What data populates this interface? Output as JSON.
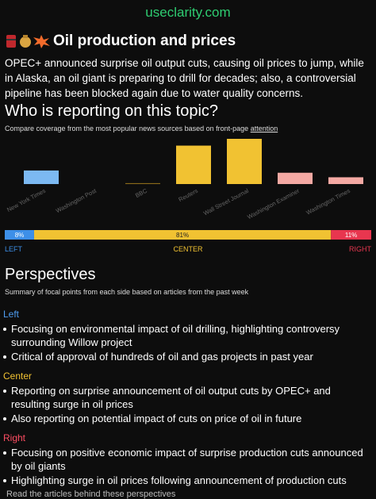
{
  "header": {
    "site": "useclarity.com"
  },
  "article": {
    "title": "Oil production and prices",
    "summary": "OPEC+ announced surprise oil output cuts, causing oil prices to jump, while in Alaska, an oil giant is preparing to drill for decades; also, a controversial pipeline has been blocked again due to water quality concerns."
  },
  "coverage": {
    "heading": "Who is reporting on this topic?",
    "description": "Compare coverage from the most popular news sources based on front-page",
    "description_link": "attention"
  },
  "chart_data": [
    {
      "type": "bar",
      "categories": [
        "New York Times",
        "Washington Post",
        "BBC",
        "Reuters",
        "Wall Street Journal",
        "Washington Examiner",
        "Washington Times"
      ],
      "values": [
        3,
        0,
        0.2,
        8.5,
        10,
        2.5,
        1.5
      ],
      "colors": [
        "#7cb9f2",
        "#7cb9f2",
        "#8a6a1a",
        "#f1c232",
        "#f1c232",
        "#f4a9a3",
        "#f4a9a3"
      ],
      "ylim": [
        0,
        10
      ]
    },
    {
      "type": "stacked_bar",
      "series": [
        {
          "name": "LEFT",
          "color": "#3d8fe8",
          "values": [
            8
          ],
          "value_labels": [
            "8%"
          ]
        },
        {
          "name": "CENTER",
          "color": "#f1c232",
          "values": [
            81
          ],
          "value_labels": [
            "81%"
          ]
        },
        {
          "name": "RIGHT",
          "color": "#e8364f",
          "values": [
            11
          ],
          "value_labels": [
            "11%"
          ]
        }
      ],
      "xlim": [
        0,
        100
      ]
    }
  ],
  "perspectives": {
    "heading": "Perspectives",
    "description": "Summary of focal points from each side based on articles from the past week",
    "groups": [
      {
        "label": "Left",
        "color": "#4e9cf0",
        "points": [
          "Focusing on environmental impact of oil drilling, highlighting controversy surrounding Willow project",
          "Critical of approval of hundreds of oil and gas projects in past year"
        ]
      },
      {
        "label": "Center",
        "color": "#f1c232",
        "points": [
          "Reporting on surprise announcement of oil output cuts by OPEC+ and resulting surge in oil prices",
          "Also reporting on potential impact of cuts on price of oil in future"
        ]
      },
      {
        "label": "Right",
        "color": "#ff4d63",
        "points": [
          "Focusing on positive economic impact of surprise production cuts announced by oil giants",
          "Highlighting surge in oil prices following announcement of production cuts"
        ]
      }
    ]
  },
  "footer": {
    "link": "Read the articles behind these perspectives"
  }
}
